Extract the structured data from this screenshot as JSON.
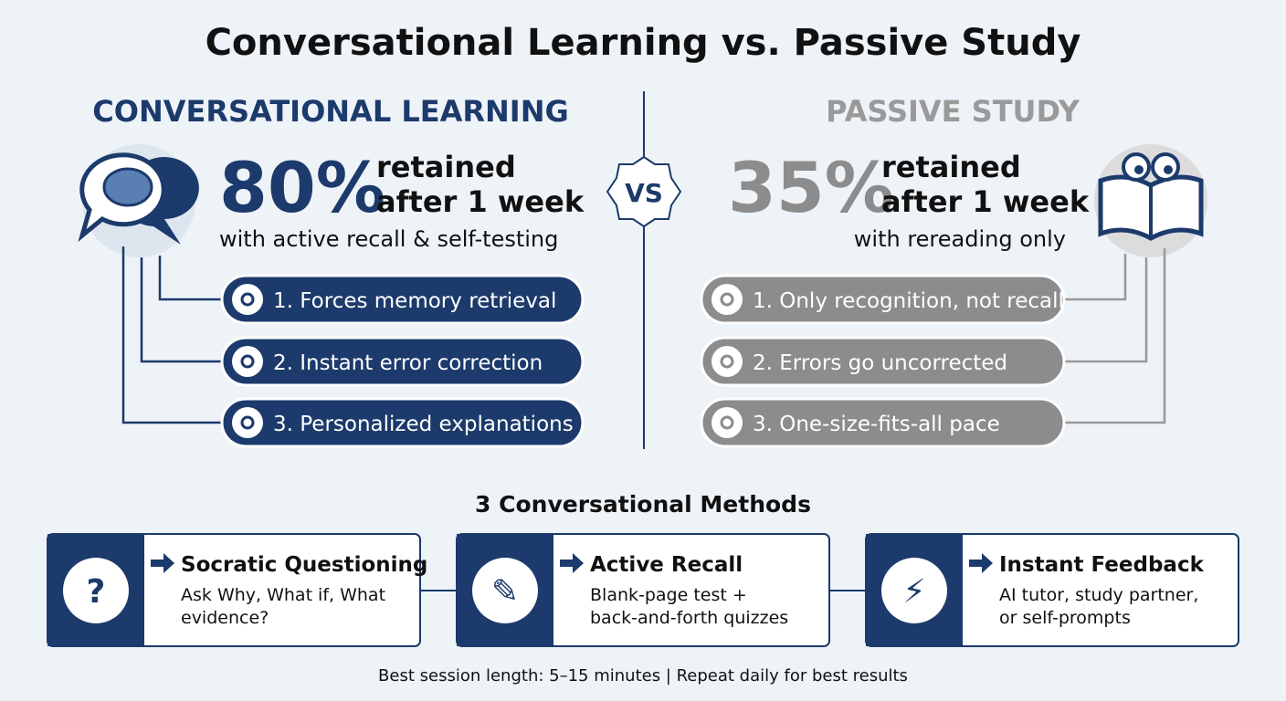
{
  "title": "Conversational Learning vs. Passive Study",
  "vs": "VS",
  "left": {
    "heading": "CONVERSATIONAL LEARNING",
    "stat": "80%",
    "stat_label_lines": [
      "retained",
      "after 1 week"
    ],
    "subtitle": "with active recall & self-testing",
    "points": [
      "1. Forces memory retrieval",
      "2. Instant error correction",
      "3. Personalized explanations"
    ]
  },
  "right": {
    "heading": "PASSIVE STUDY",
    "stat": "35%",
    "stat_label_lines": [
      "retained",
      "after 1 week"
    ],
    "subtitle": "with rereading only",
    "points": [
      "1. Only recognition, not recall",
      "2. Errors go uncorrected",
      "3. One-size-fits-all pace"
    ]
  },
  "methods": {
    "heading": "3 Conversational Methods",
    "items": [
      {
        "title": "Socratic Questioning",
        "description_lines": [
          "Ask Why, What if, What",
          "evidence?"
        ]
      },
      {
        "title": "Active Recall",
        "description_lines": [
          "Blank-page test +",
          "back-and-forth quizzes"
        ]
      },
      {
        "title": "Instant Feedback",
        "description_lines": [
          "AI tutor, study partner,",
          "or self-prompts"
        ]
      }
    ]
  },
  "footer": "Best session length: 5–15 minutes | Repeat daily for best results"
}
